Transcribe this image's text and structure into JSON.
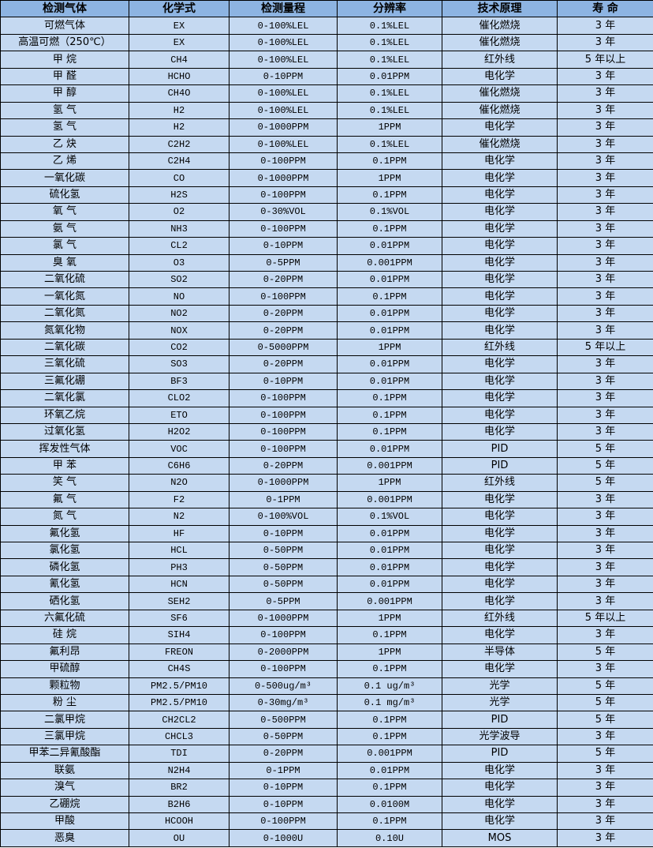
{
  "colors": {
    "header_bg": "#8db4e2",
    "row_bg": "#c5d9f1",
    "border": "#000000"
  },
  "table": {
    "headers": [
      "检测气体",
      "化学式",
      "检测量程",
      "分辨率",
      "技术原理",
      "寿 命"
    ],
    "rows": [
      [
        "可燃气体",
        "EX",
        "0-100%LEL",
        "0.1%LEL",
        "催化燃烧",
        "3 年"
      ],
      [
        "高温可燃（250℃）",
        "EX",
        "0-100%LEL",
        "0.1%LEL",
        "催化燃烧",
        "3 年"
      ],
      [
        "甲 烷",
        "CH4",
        "0-100%LEL",
        "0.1%LEL",
        "红外线",
        "5 年以上"
      ],
      [
        "甲 醛",
        "HCHO",
        "0-10PPM",
        "0.01PPM",
        "电化学",
        "3 年"
      ],
      [
        "甲 醇",
        "CH4O",
        "0-100%LEL",
        "0.1%LEL",
        "催化燃烧",
        "3 年"
      ],
      [
        "氢 气",
        "H2",
        "0-100%LEL",
        "0.1%LEL",
        "催化燃烧",
        "3 年"
      ],
      [
        "氢 气",
        "H2",
        "0-1000PPM",
        "1PPM",
        "电化学",
        "3 年"
      ],
      [
        "乙 炔",
        "C2H2",
        "0-100%LEL",
        "0.1%LEL",
        "催化燃烧",
        "3 年"
      ],
      [
        "乙 烯",
        "C2H4",
        "0-100PPM",
        "0.1PPM",
        "电化学",
        "3 年"
      ],
      [
        "一氧化碳",
        "CO",
        "0-1000PPM",
        "1PPM",
        "电化学",
        "3 年"
      ],
      [
        "硫化氢",
        "H2S",
        "0-100PPM",
        "0.1PPM",
        "电化学",
        "3 年"
      ],
      [
        "氧 气",
        "O2",
        "0-30%VOL",
        "0.1%VOL",
        "电化学",
        "3 年"
      ],
      [
        "氨 气",
        "NH3",
        "0-100PPM",
        "0.1PPM",
        "电化学",
        "3 年"
      ],
      [
        "氯 气",
        "CL2",
        "0-10PPM",
        "0.01PPM",
        "电化学",
        "3 年"
      ],
      [
        "臭 氧",
        "O3",
        "0-5PPM",
        "0.001PPM",
        "电化学",
        "3 年"
      ],
      [
        "二氧化硫",
        "SO2",
        "0-20PPM",
        "0.01PPM",
        "电化学",
        "3 年"
      ],
      [
        "一氧化氮",
        "NO",
        "0-100PPM",
        "0.1PPM",
        "电化学",
        "3 年"
      ],
      [
        "二氧化氮",
        "NO2",
        "0-20PPM",
        "0.01PPM",
        "电化学",
        "3 年"
      ],
      [
        "氮氧化物",
        "NOX",
        "0-20PPM",
        "0.01PPM",
        "电化学",
        "3 年"
      ],
      [
        "二氧化碳",
        "CO2",
        "0-5000PPM",
        "1PPM",
        "红外线",
        "5 年以上"
      ],
      [
        "三氧化硫",
        "SO3",
        "0-20PPM",
        "0.01PPM",
        "电化学",
        "3 年"
      ],
      [
        "三氟化硼",
        "BF3",
        "0-10PPM",
        "0.01PPM",
        "电化学",
        "3 年"
      ],
      [
        "二氧化氯",
        "CLO2",
        "0-100PPM",
        "0.1PPM",
        "电化学",
        "3 年"
      ],
      [
        "环氧乙烷",
        "ETO",
        "0-100PPM",
        "0.1PPM",
        "电化学",
        "3 年"
      ],
      [
        "过氧化氢",
        "H2O2",
        "0-100PPM",
        "0.1PPM",
        "电化学",
        "3 年"
      ],
      [
        "挥发性气体",
        "VOC",
        "0-100PPM",
        "0.01PPM",
        "PID",
        "5 年"
      ],
      [
        "甲 苯",
        "C6H6",
        "0-20PPM",
        "0.001PPM",
        "PID",
        "5 年"
      ],
      [
        "笑 气",
        "N2O",
        "0-1000PPM",
        "1PPM",
        "红外线",
        "5 年"
      ],
      [
        "氟 气",
        "F2",
        "0-1PPM",
        "0.001PPM",
        "电化学",
        "3 年"
      ],
      [
        "氮 气",
        "N2",
        "0-100%VOL",
        "0.1%VOL",
        "电化学",
        "3 年"
      ],
      [
        "氟化氢",
        "HF",
        "0-10PPM",
        "0.01PPM",
        "电化学",
        "3 年"
      ],
      [
        "氯化氢",
        "HCL",
        "0-50PPM",
        "0.01PPM",
        "电化学",
        "3 年"
      ],
      [
        "磷化氢",
        "PH3",
        "0-50PPM",
        "0.01PPM",
        "电化学",
        "3 年"
      ],
      [
        "氰化氢",
        "HCN",
        "0-50PPM",
        "0.01PPM",
        "电化学",
        "3 年"
      ],
      [
        "硒化氢",
        "SEH2",
        "0-5PPM",
        "0.001PPM",
        "电化学",
        "3 年"
      ],
      [
        "六氟化硫",
        "SF6",
        "0-1000PPM",
        "1PPM",
        "红外线",
        "5 年以上"
      ],
      [
        "硅 烷",
        "SIH4",
        "0-100PPM",
        "0.1PPM",
        "电化学",
        "3 年"
      ],
      [
        "氟利昂",
        "FREON",
        "0-2000PPM",
        "1PPM",
        "半导体",
        "5 年"
      ],
      [
        "甲硫醇",
        "CH4S",
        "0-100PPM",
        "0.1PPM",
        "电化学",
        "3 年"
      ],
      [
        "颗粒物",
        "PM2.5/PM10",
        "0-500ug/m³",
        "0.1 ug/m³",
        "光学",
        "5 年"
      ],
      [
        "粉 尘",
        "PM2.5/PM10",
        "0-30mg/m³",
        "0.1 mg/m³",
        "光学",
        "5 年"
      ],
      [
        "二氯甲烷",
        "CH2CL2",
        "0-500PPM",
        "0.1PPM",
        "PID",
        "5 年"
      ],
      [
        "三氯甲烷",
        "CHCL3",
        "0-50PPM",
        "0.1PPM",
        "光学波导",
        "3 年"
      ],
      [
        "甲苯二异氰酸酯",
        "TDI",
        "0-20PPM",
        "0.001PPM",
        "PID",
        "5 年"
      ],
      [
        "联氨",
        "N2H4",
        "0-1PPM",
        "0.01PPM",
        "电化学",
        "3 年"
      ],
      [
        "溴气",
        "BR2",
        "0-10PPM",
        "0.1PPM",
        "电化学",
        "3 年"
      ],
      [
        "乙硼烷",
        "B2H6",
        "0-10PPM",
        "0.0100M",
        "电化学",
        "3 年"
      ],
      [
        "甲酸",
        "HCOOH",
        "0-100PPM",
        "0.1PPM",
        "电化学",
        "3 年"
      ],
      [
        "恶臭",
        "OU",
        "0-1000U",
        "0.10U",
        "MOS",
        "3 年"
      ]
    ]
  }
}
